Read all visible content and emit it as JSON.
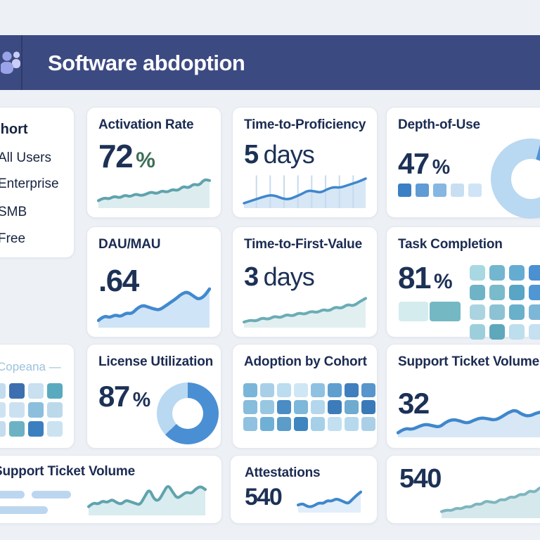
{
  "header": {
    "title": "Software abdoption",
    "icon": "teams-people-icon"
  },
  "colors": {
    "header_bg": "#3c4a82",
    "page_bg": "#edf0f5",
    "card_bg": "#ffffff",
    "title_text": "#1b2b52",
    "number_text": "#1d3156",
    "green_accent": "#3e6f57",
    "blue_line": "#3f87cc",
    "teal_line": "#5fa3ad",
    "light_blue_fill": "#d7e7f6",
    "light_teal_fill": "#ddedef"
  },
  "sidebar": {
    "title": "Cohort",
    "items": [
      "All Users",
      "Enterprise",
      "SMB",
      "Free"
    ]
  },
  "cards": {
    "activation": {
      "title": "Activation Rate",
      "value": "72",
      "unit": "%"
    },
    "ttp": {
      "title": "Time-to-Proficiency",
      "value": "5",
      "unit": "days"
    },
    "depth": {
      "title": "Depth-of-Use",
      "value": "47",
      "unit": "%"
    },
    "dau": {
      "title": "DAU/MAU",
      "value": ".64"
    },
    "ttfv": {
      "title": "Time-to-First-Value",
      "value": "3",
      "unit": "days"
    },
    "task": {
      "title": "Task Completion",
      "value": "81",
      "unit": "%"
    },
    "copeana": {
      "label": "Copeana —"
    },
    "license": {
      "title": "License Utilization",
      "value": "87",
      "unit": "%"
    },
    "adoption": {
      "title": "Adoption by Cohort"
    },
    "support3": {
      "title": "Support Ticket Volume",
      "value": "32"
    },
    "support4": {
      "title": "Support Ticket Volume"
    },
    "attest": {
      "title": "Attestations",
      "value": "540"
    },
    "c540": {
      "value": "540"
    }
  },
  "chart_data": {
    "sparklines": {
      "activation": {
        "type": "area",
        "color": "#5fa3ad",
        "fill": "#ddedef",
        "stroke": 4,
        "values": [
          16,
          24,
          20,
          28,
          23,
          31,
          26,
          34,
          29,
          33,
          39,
          34,
          42,
          38,
          46,
          42,
          54,
          49,
          60,
          56,
          72,
          69
        ]
      },
      "ttp": {
        "type": "area",
        "color": "#3f87cc",
        "fill": "#d7e7f6",
        "stroke": 3.5,
        "grid": true,
        "grid_color": "#c6dbef",
        "values": [
          10,
          16,
          22,
          28,
          33,
          31,
          23,
          21,
          28,
          36,
          46,
          44,
          40,
          50,
          56,
          54,
          60,
          66,
          72,
          80
        ]
      },
      "dau": {
        "type": "area",
        "color": "#4289cf",
        "fill": "#cfe4f6",
        "stroke": 4.5,
        "values": [
          12,
          22,
          18,
          24,
          20,
          28,
          26,
          38,
          44,
          40,
          36,
          34,
          42,
          50,
          58,
          68,
          72,
          64,
          56,
          62,
          78
        ]
      },
      "ttfv": {
        "type": "area",
        "color": "#6aacb6",
        "fill": "#e1eff1",
        "stroke": 4,
        "values": [
          10,
          15,
          12,
          20,
          16,
          24,
          20,
          28,
          24,
          32,
          28,
          36,
          32,
          40,
          36,
          46,
          42,
          52,
          48,
          58,
          66
        ]
      },
      "support_row3": {
        "type": "area",
        "color": "#3f87cc",
        "fill": "#d7e7f6",
        "stroke": 4.5,
        "values": [
          8,
          20,
          16,
          24,
          30,
          26,
          22,
          36,
          42,
          38,
          32,
          40,
          46,
          44,
          40,
          48,
          60,
          66,
          54,
          50,
          58,
          62,
          56,
          62
        ]
      },
      "support_bottom": {
        "type": "area",
        "color": "#5fa3ad",
        "fill": "#d9ecef",
        "stroke": 4,
        "values": [
          18,
          28,
          24,
          32,
          28,
          36,
          28,
          24,
          34,
          30,
          26,
          22,
          42,
          62,
          36,
          32,
          52,
          72,
          54,
          38,
          46,
          54,
          50,
          62,
          68,
          60
        ]
      },
      "attestations": {
        "type": "area",
        "color": "#3f87cc",
        "fill": "#e2eef9",
        "stroke": 4,
        "values": [
          22,
          28,
          18,
          15,
          21,
          30,
          27,
          38,
          35,
          44,
          40,
          33,
          27,
          42,
          56,
          68
        ]
      },
      "bottom_right": {
        "type": "area",
        "color": "#7fb5bf",
        "fill": "#d5e9ec",
        "stroke": 4,
        "values": [
          12,
          16,
          14,
          20,
          18,
          24,
          22,
          30,
          28,
          36,
          34,
          32,
          40,
          38,
          46,
          44,
          52,
          50,
          60,
          56,
          66,
          70,
          68,
          78
        ]
      }
    },
    "donuts": {
      "depth": {
        "size": 114,
        "hole": 0.5,
        "from": "15deg",
        "segments": [
          {
            "color": "#4f94d8",
            "pct": 32
          },
          {
            "color": "#b9d8f1",
            "pct": 68
          }
        ]
      },
      "license": {
        "size": 88,
        "hole": 0.5,
        "from": "0deg",
        "segments": [
          {
            "color": "#4a8fd4",
            "pct": 63
          },
          {
            "color": "#b9d8f1",
            "pct": 37
          }
        ]
      }
    },
    "heatmaps": {
      "depth_squares": {
        "cell": 19,
        "gap": 6,
        "radius": 3,
        "colors": [
          [
            "#3b7fc4",
            "#5f9bd4",
            "#85b7e2",
            "#c8dff3",
            "#cfe4f6"
          ]
        ]
      },
      "task": {
        "cell": 22,
        "gap": 6,
        "radius": 5,
        "colors": [
          [
            "#a8d8e2",
            "#72b6cf",
            "#64acd2",
            "#4a90d2",
            "#7db7dc"
          ],
          [
            "#6fb4c6",
            "#79bbca",
            "#58a5c5",
            "#4f97d4",
            "#2e6fb2"
          ],
          [
            "#abd4e1",
            "#8cc2d4",
            "#69b0ca",
            "#7db7d8",
            "#a5cbe5"
          ],
          [
            "#9ccfdb",
            "#5fa8bc",
            "#bcdeed",
            "#c4e0f1",
            "#b5d8ea"
          ]
        ]
      },
      "adoption": {
        "cell": 20,
        "gap": 4,
        "radius": 4,
        "colors": [
          [
            "#7ab6d9",
            "#a9cfe8",
            "#bcdcef",
            "#cfe6f4",
            "#8fc2e2",
            "#5e9fd0",
            "#3f7fbe",
            "#5795cc"
          ],
          [
            "#86bcdc",
            "#98c7e2",
            "#4a8cc4",
            "#7db7da",
            "#b5d7ed",
            "#3d7cba",
            "#6faacf",
            "#3a79b8"
          ],
          [
            "#90c1e0",
            "#6fb0d6",
            "#5b9cc9",
            "#3f85c0",
            "#a6cfe8",
            "#c2e0f2",
            "#b7d9ee",
            "#accfe8"
          ]
        ]
      },
      "copeana": {
        "cell": 22,
        "gap": 5,
        "radius": 4,
        "colors": [
          [
            "#c3dcee",
            "#3b6fb0",
            "#c8e0f0",
            "#5aaabf"
          ],
          [
            "#cde3f2",
            "#cbe1f1",
            "#8cbfdd",
            "#bcd9ec"
          ],
          [
            "#c3dcee",
            "#6cb2c4",
            "#3b7fc0",
            "#cbe2f1"
          ]
        ]
      }
    }
  }
}
